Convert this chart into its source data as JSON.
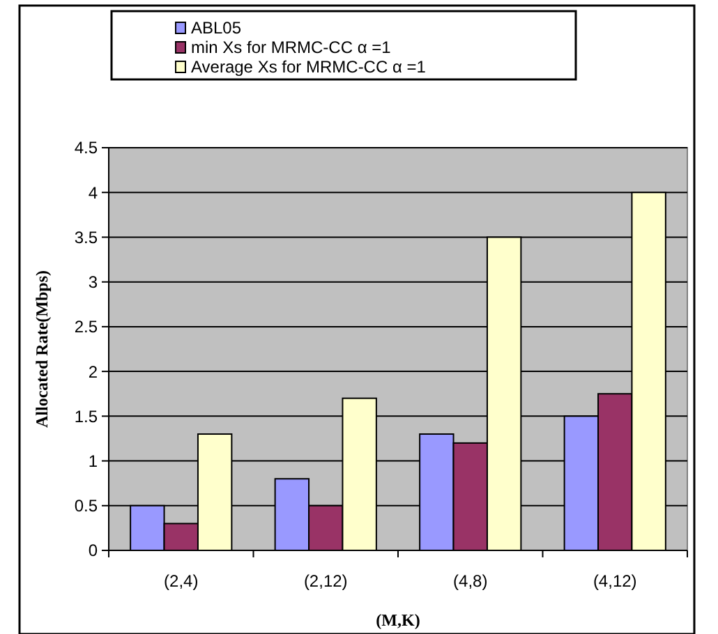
{
  "chart_data": {
    "type": "bar",
    "xlabel": "(M,K)",
    "ylabel": "Allocated Rate(Mbps)",
    "categories": [
      "(2,4)",
      "(2,12)",
      "(4,8)",
      "(4,12)"
    ],
    "series": [
      {
        "name": "ABL05",
        "color": "#9999ff",
        "values": [
          0.5,
          0.8,
          1.3,
          1.5
        ]
      },
      {
        "name": "min  Xs for MRMC-CC α =1",
        "color": "#993366",
        "values": [
          0.3,
          0.5,
          1.2,
          1.75
        ]
      },
      {
        "name": "Average Xs for MRMC-CC α =1",
        "color": "#ffffcc",
        "values": [
          1.3,
          1.7,
          3.5,
          4.0
        ]
      }
    ],
    "ylim": [
      0,
      4.5
    ],
    "yticks": [
      0,
      0.5,
      1,
      1.5,
      2,
      2.5,
      3,
      3.5,
      4,
      4.5
    ],
    "grid": "y",
    "legend": "top"
  }
}
